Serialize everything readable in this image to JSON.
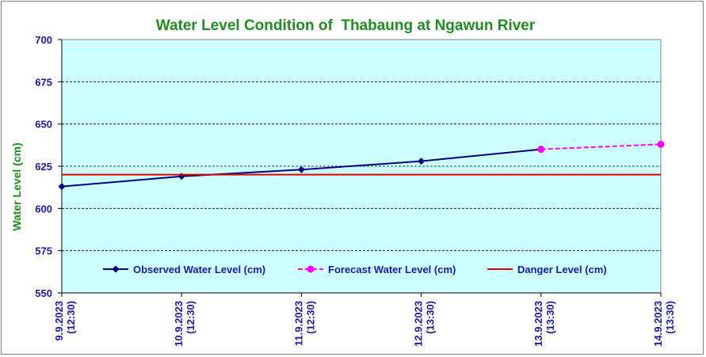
{
  "chart_data": {
    "type": "line",
    "title": "Water Level Condition of  Thabaung at Ngawun River",
    "ylabel": "Water Level (cm)",
    "xlabel": "",
    "ylim": [
      550,
      700
    ],
    "yticks": [
      "550",
      "575",
      "600",
      "625",
      "650",
      "675",
      "700"
    ],
    "ytick_values": [
      550,
      575,
      600,
      625,
      650,
      675,
      700
    ],
    "categories": [
      {
        "date": "9.9.2023",
        "time": "(12:30)"
      },
      {
        "date": "10.9.2023",
        "time": "(12:30)"
      },
      {
        "date": "11.9.2023",
        "time": "(12:30)"
      },
      {
        "date": "12.9.2023",
        "time": "(13:30)"
      },
      {
        "date": "13.9.2023",
        "time": "(13:30)"
      },
      {
        "date": "14.9.2023",
        "time": "(13:30)"
      }
    ],
    "series": [
      {
        "name": "Observed Water Level (cm)",
        "values": [
          613,
          619,
          623,
          628,
          635,
          null
        ],
        "color": "#000080",
        "marker": "diamond",
        "style": "solid"
      },
      {
        "name": "Forecast Water Level (cm)",
        "values": [
          null,
          null,
          null,
          null,
          635,
          638
        ],
        "color": "#ff00ff",
        "marker": "circle",
        "style": "dashed"
      },
      {
        "name": "Danger Level (cm)",
        "values": [
          620,
          620,
          620,
          620,
          620,
          620
        ],
        "color": "#e00000",
        "marker": "none",
        "style": "solid"
      }
    ],
    "grid": true,
    "legend_position": "bottom-inside",
    "plot_background": "#ccffff"
  }
}
